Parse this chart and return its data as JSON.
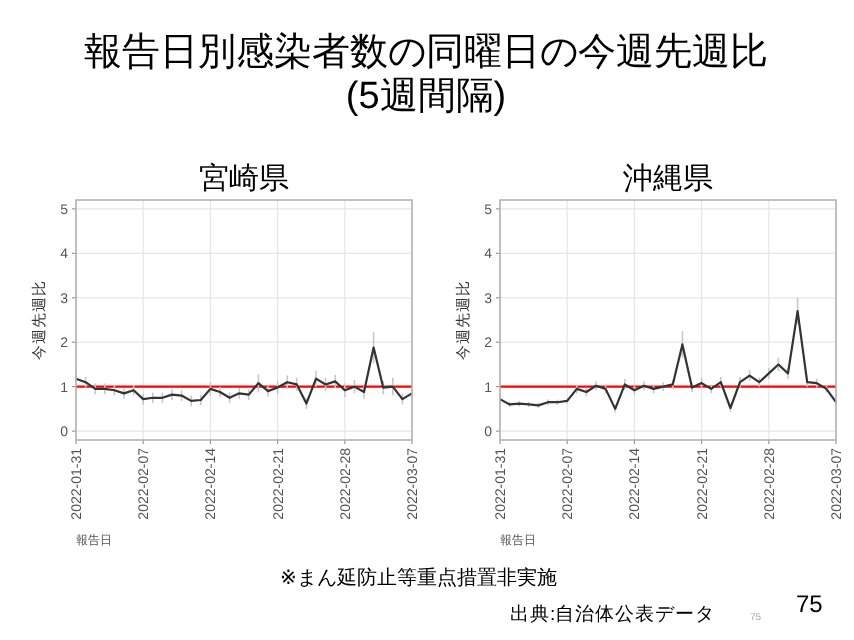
{
  "chart_data": [
    {
      "type": "line",
      "title": "宮崎県",
      "xlabel": "報告日",
      "ylabel": "今週先週比",
      "annotations": [
        "報告日別感染者数の同曜日の今週先週比\n(5週間隔)",
        "※まん延防止等重点措置非実施",
        "出典:自治体公表データ",
        "75",
        "75"
      ],
      "x": [
        "2022-01-31",
        "2022-02-01",
        "2022-02-02",
        "2022-02-03",
        "2022-02-04",
        "2022-02-05",
        "2022-02-06",
        "2022-02-07",
        "2022-02-08",
        "2022-02-09",
        "2022-02-10",
        "2022-02-11",
        "2022-02-12",
        "2022-02-13",
        "2022-02-14",
        "2022-02-15",
        "2022-02-16",
        "2022-02-17",
        "2022-02-18",
        "2022-02-19",
        "2022-02-20",
        "2022-02-21",
        "2022-02-22",
        "2022-02-23",
        "2022-02-24",
        "2022-02-25",
        "2022-02-26",
        "2022-02-27",
        "2022-02-28",
        "2022-03-01",
        "2022-03-02",
        "2022-03-03",
        "2022-03-04",
        "2022-03-05",
        "2022-03-06",
        "2022-03-07"
      ],
      "series": [
        {
          "color": "#333333",
          "values": [
            1.18,
            1.1,
            0.95,
            0.95,
            0.92,
            0.85,
            0.92,
            0.72,
            0.75,
            0.75,
            0.82,
            0.8,
            0.68,
            0.7,
            0.95,
            0.88,
            0.75,
            0.85,
            0.82,
            1.08,
            0.9,
            0.98,
            1.1,
            1.05,
            0.62,
            1.18,
            1.05,
            1.12,
            0.92,
            1.0,
            0.88,
            1.88,
            0.98,
            1.0,
            0.72,
            0.85
          ],
          "errors": [
            0.1,
            0.12,
            0.12,
            0.12,
            0.12,
            0.12,
            0.12,
            0.12,
            0.12,
            0.12,
            0.12,
            0.12,
            0.12,
            0.12,
            0.15,
            0.12,
            0.12,
            0.12,
            0.12,
            0.2,
            0.12,
            0.15,
            0.15,
            0.15,
            0.12,
            0.18,
            0.15,
            0.15,
            0.15,
            0.15,
            0.15,
            0.35,
            0.15,
            0.2,
            0.12,
            0.1
          ]
        }
      ],
      "xlim": [
        "2022-01-31",
        "2022-03-07"
      ],
      "xticks": [
        "2022-01-31",
        "2022-02-07",
        "2022-02-14",
        "2022-02-21",
        "2022-02-28",
        "2022-03-07"
      ],
      "ylim": [
        -0.2,
        5.2
      ],
      "yticks": [
        0,
        1,
        2,
        3,
        4,
        5
      ],
      "grid": true,
      "ref_lines": [
        {
          "axis": "y",
          "value": 1,
          "color": "#ff0000"
        }
      ]
    },
    {
      "type": "line",
      "title": "沖縄県",
      "xlabel": "報告日",
      "ylabel": "今週先週比",
      "x": [
        "2022-01-31",
        "2022-02-01",
        "2022-02-02",
        "2022-02-03",
        "2022-02-04",
        "2022-02-05",
        "2022-02-06",
        "2022-02-07",
        "2022-02-08",
        "2022-02-09",
        "2022-02-10",
        "2022-02-11",
        "2022-02-12",
        "2022-02-13",
        "2022-02-14",
        "2022-02-15",
        "2022-02-16",
        "2022-02-17",
        "2022-02-18",
        "2022-02-19",
        "2022-02-20",
        "2022-02-21",
        "2022-02-22",
        "2022-02-23",
        "2022-02-24",
        "2022-02-25",
        "2022-02-26",
        "2022-02-27",
        "2022-02-28",
        "2022-03-01",
        "2022-03-02",
        "2022-03-03",
        "2022-03-04",
        "2022-03-05",
        "2022-03-06",
        "2022-03-07"
      ],
      "series": [
        {
          "color": "#333333",
          "values": [
            0.72,
            0.6,
            0.62,
            0.6,
            0.58,
            0.65,
            0.65,
            0.68,
            0.95,
            0.88,
            1.02,
            0.95,
            0.5,
            1.05,
            0.92,
            1.02,
            0.95,
            1.0,
            1.05,
            1.95,
            0.98,
            1.08,
            0.95,
            1.1,
            0.52,
            1.1,
            1.25,
            1.1,
            1.3,
            1.5,
            1.3,
            2.7,
            1.1,
            1.08,
            0.95,
            0.65
          ],
          "errors": [
            0.08,
            0.06,
            0.06,
            0.06,
            0.06,
            0.06,
            0.06,
            0.06,
            0.1,
            0.1,
            0.1,
            0.1,
            0.08,
            0.12,
            0.1,
            0.1,
            0.1,
            0.1,
            0.1,
            0.3,
            0.1,
            0.12,
            0.1,
            0.12,
            0.08,
            0.12,
            0.12,
            0.1,
            0.12,
            0.15,
            0.12,
            0.3,
            0.1,
            0.1,
            0.08,
            0.06
          ]
        }
      ],
      "xlim": [
        "2022-01-31",
        "2022-03-07"
      ],
      "xticks": [
        "2022-01-31",
        "2022-02-07",
        "2022-02-14",
        "2022-02-21",
        "2022-02-28",
        "2022-03-07"
      ],
      "ylim": [
        -0.2,
        5.2
      ],
      "yticks": [
        0,
        1,
        2,
        3,
        4,
        5
      ],
      "grid": true,
      "ref_lines": [
        {
          "axis": "y",
          "value": 1,
          "color": "#ff0000"
        }
      ]
    }
  ]
}
